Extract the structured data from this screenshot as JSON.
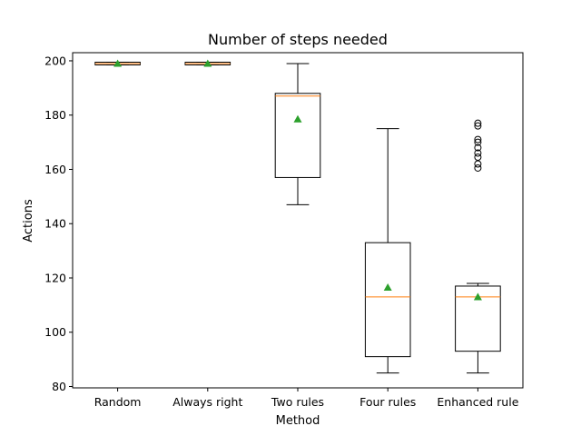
{
  "chart_data": {
    "type": "box",
    "title": "Number of steps needed",
    "xlabel": "Method",
    "ylabel": "Actions",
    "ylim": [
      79.5,
      203
    ],
    "yticks": [
      80,
      100,
      120,
      140,
      160,
      180,
      200
    ],
    "categories": [
      "Random",
      "Always right",
      "Two rules",
      "Four rules",
      "Enhanced rule"
    ],
    "boxes": [
      {
        "whisker_low": 198.5,
        "q1": 198.5,
        "median": 199,
        "q3": 199.5,
        "whisker_high": 199.5,
        "mean": 199,
        "fliers": []
      },
      {
        "whisker_low": 198.5,
        "q1": 198.5,
        "median": 199,
        "q3": 199.5,
        "whisker_high": 199.5,
        "mean": 199,
        "fliers": []
      },
      {
        "whisker_low": 147,
        "q1": 157,
        "median": 187,
        "q3": 188,
        "whisker_high": 199,
        "mean": 178.5,
        "fliers": []
      },
      {
        "whisker_low": 85,
        "q1": 91,
        "median": 113,
        "q3": 133,
        "whisker_high": 175,
        "mean": 116.5,
        "fliers": []
      },
      {
        "whisker_low": 85,
        "q1": 93,
        "median": 113,
        "q3": 117,
        "whisker_high": 118,
        "mean": 113,
        "fliers": [
          160.5,
          162,
          164.5,
          166,
          168,
          170,
          171,
          176,
          177
        ]
      }
    ],
    "colors": {
      "box": "#000000",
      "median": "#ff7f0e",
      "mean": "#2ca02c",
      "flier": "#000000"
    },
    "grid": false,
    "legend": "none"
  }
}
